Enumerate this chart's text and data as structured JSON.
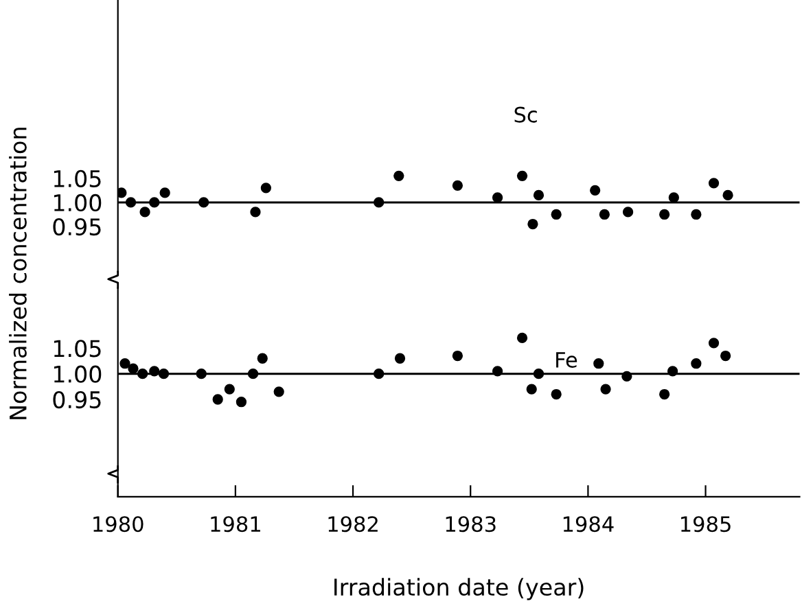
{
  "chart_data": [
    {
      "type": "scatter",
      "ylabel": "Normalized concentration",
      "annotations": [
        "Sc"
      ],
      "marker": "circle",
      "grid": false,
      "tick_labels": "y",
      "xlim": [
        1980,
        1985.8
      ],
      "ylim": [
        0.856,
        1.42
      ],
      "yticks": [
        {
          "value": 1.05,
          "label": "1.05"
        },
        {
          "value": 1.0,
          "label": "1.00"
        },
        {
          "value": 0.95,
          "label": "0.95"
        }
      ],
      "ref_lines": [
        {
          "axis": "y",
          "value": 1.0,
          "color": "#000000"
        }
      ],
      "series": [
        {
          "color": "#000000",
          "x": [
            1980.03,
            1980.11,
            1980.23,
            1980.31,
            1980.4,
            1980.73,
            1981.17,
            1981.26,
            1982.22,
            1982.39,
            1982.89,
            1983.23,
            1983.44,
            1983.53,
            1983.58,
            1983.73,
            1984.06,
            1984.14,
            1984.34,
            1984.65,
            1984.73,
            1984.92,
            1985.07,
            1985.19
          ],
          "values": [
            1.02,
            1.0,
            0.98,
            1.0,
            1.02,
            1.0,
            0.98,
            1.03,
            1.0,
            1.055,
            1.035,
            1.01,
            1.055,
            0.955,
            1.015,
            0.975,
            1.025,
            0.975,
            0.98,
            0.975,
            1.01,
            0.975,
            1.04,
            1.015
          ]
        }
      ]
    },
    {
      "type": "scatter",
      "xlabel": "Irradiation date (year)",
      "annotations": [
        "Fe"
      ],
      "marker": "circle",
      "grid": false,
      "xlim": [
        1980,
        1985.8
      ],
      "xticks": [
        1980,
        1981,
        1982,
        1983,
        1984,
        1985
      ],
      "ylim": [
        0.76,
        1.167
      ],
      "yticks": [
        {
          "value": 1.05,
          "label": "1.05"
        },
        {
          "value": 1.0,
          "label": "1.00"
        },
        {
          "value": 0.95,
          "label": "0.95"
        }
      ],
      "ref_lines": [
        {
          "axis": "y",
          "value": 1.0,
          "color": "#000000"
        }
      ],
      "series": [
        {
          "color": "#000000",
          "x": [
            1980.06,
            1980.13,
            1980.21,
            1980.31,
            1980.39,
            1980.71,
            1980.85,
            1980.95,
            1981.05,
            1981.15,
            1981.23,
            1981.37,
            1982.22,
            1982.4,
            1982.89,
            1983.23,
            1983.44,
            1983.52,
            1983.58,
            1983.73,
            1984.09,
            1984.15,
            1984.33,
            1984.65,
            1984.72,
            1984.92,
            1985.07,
            1985.17
          ],
          "values": [
            1.02,
            1.01,
            1.0,
            1.005,
            1.0,
            1.0,
            0.95,
            0.97,
            0.945,
            1.0,
            1.03,
            0.965,
            1.0,
            1.03,
            1.035,
            1.005,
            1.07,
            0.97,
            1.0,
            0.96,
            1.02,
            0.97,
            0.995,
            0.96,
            1.005,
            1.02,
            1.06,
            1.035
          ]
        }
      ]
    }
  ]
}
